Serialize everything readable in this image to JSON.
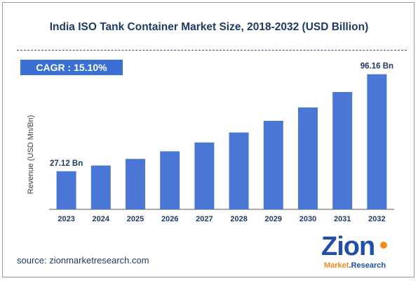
{
  "chart_data": {
    "type": "bar",
    "title": "India ISO Tank Container Market Size, 2018-2032 (USD Billion)",
    "ylabel": "Revenue (USD Mn/Bn)",
    "xlabel": "",
    "categories": [
      "2023",
      "2024",
      "2025",
      "2026",
      "2027",
      "2028",
      "2029",
      "2030",
      "2031",
      "2032"
    ],
    "values": [
      27.12,
      31.2,
      35.9,
      41.3,
      47.6,
      54.7,
      63.0,
      72.5,
      83.5,
      96.16
    ],
    "data_labels": [
      {
        "index": 0,
        "text": "27.12 Bn"
      },
      {
        "index": 9,
        "text": "96.16 Bn"
      }
    ],
    "ylim": [
      0,
      100
    ],
    "grid": false,
    "legend": "none",
    "bar_color": "#4a77d6"
  },
  "annotation": {
    "cagr": "CAGR :  15.10%"
  },
  "colors": {
    "title": "#1f3b64",
    "cagr_box": "#3a6fd3",
    "axis": "#555555"
  },
  "source": "source: zionmarketresearch.com",
  "logo": {
    "name": "Zion",
    "subtitle_left": "Market",
    "subtitle_right": ".Research"
  }
}
